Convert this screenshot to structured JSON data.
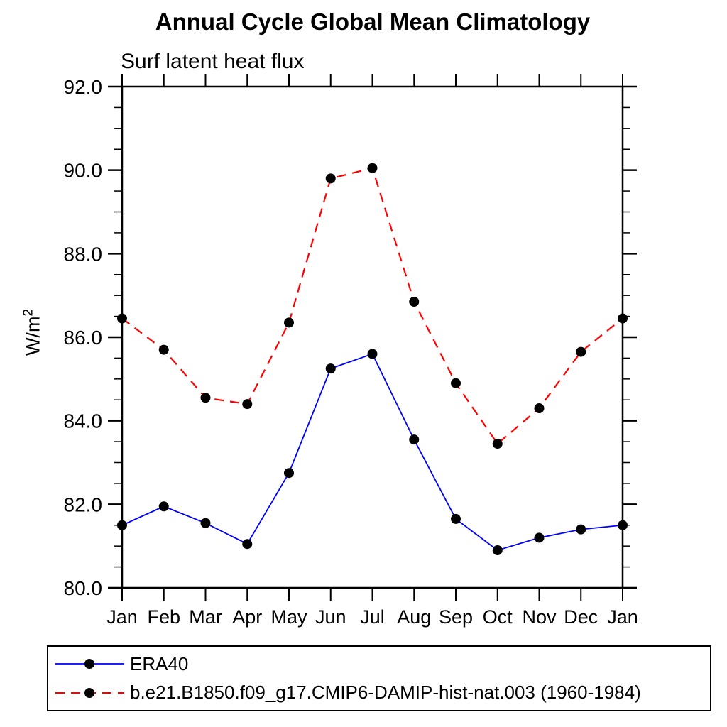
{
  "page": {
    "background": "#ffffff"
  },
  "chart": {
    "title": "Annual Cycle Global Mean Climatology",
    "subtitle": "Surf latent heat flux",
    "ylabel_base": "W/m",
    "ylabel_sup": "2"
  },
  "chart_data": {
    "type": "line",
    "title": "Annual Cycle Global Mean Climatology",
    "subtitle": "Surf latent heat flux",
    "xlabel": "",
    "ylabel": "W/m^2",
    "categories": [
      "Jan",
      "Feb",
      "Mar",
      "Apr",
      "May",
      "Jun",
      "Jul",
      "Aug",
      "Sep",
      "Oct",
      "Nov",
      "Dec",
      "Jan"
    ],
    "ylim": [
      80.0,
      92.0
    ],
    "ytick_values": [
      80,
      82,
      84,
      86,
      88,
      90,
      92
    ],
    "ytick_labels": [
      "80.0",
      "82.0",
      "84.0",
      "86.0",
      "88.0",
      "90.0",
      "92.0"
    ],
    "minor_tick_step": 0.5,
    "grid": false,
    "legend_position": "bottom-left",
    "marker": {
      "shape": "circle",
      "color": "#000000",
      "radius": 7
    },
    "axis_color": "#000000",
    "series": [
      {
        "name": "ERA40",
        "color": "#0000ff",
        "line_style": "solid",
        "values": [
          81.5,
          81.95,
          81.55,
          81.05,
          82.75,
          85.25,
          85.6,
          83.55,
          81.65,
          80.9,
          81.2,
          81.4,
          81.5
        ]
      },
      {
        "name": "b.e21.B1850.f09_g17.CMIP6-DAMIP-hist-nat.003 (1960-1984)",
        "color": "#ff0000",
        "line_style": "dashed",
        "values": [
          86.45,
          85.7,
          84.55,
          84.4,
          86.35,
          89.8,
          90.05,
          86.85,
          84.9,
          83.45,
          84.3,
          85.65,
          86.45
        ]
      }
    ]
  }
}
